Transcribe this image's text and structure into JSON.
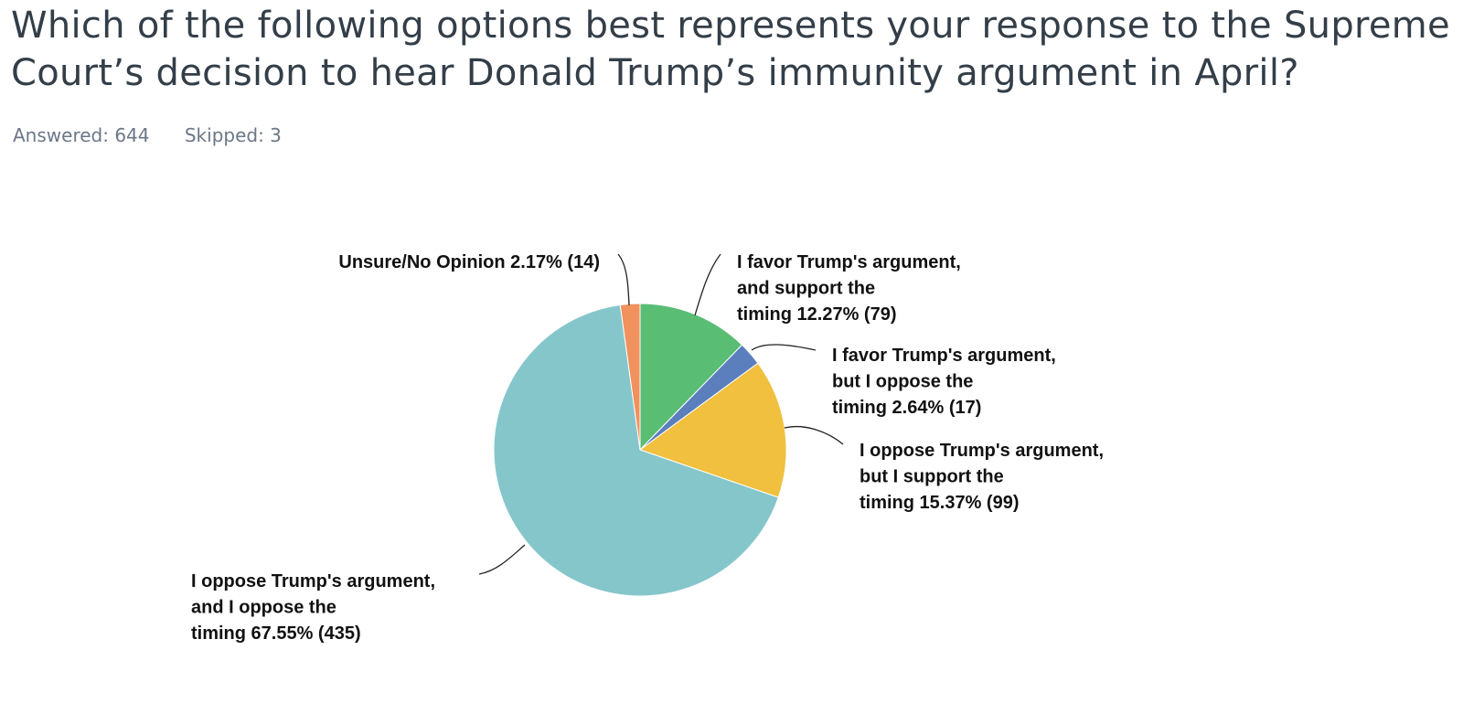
{
  "question": {
    "title": "Which of the following options best represents your response to the Supreme\nCourt’s decision to hear Donald Trump’s immunity argument in April?",
    "answered": "Answered: 644",
    "skipped": "Skipped: 3"
  },
  "chart_data": {
    "type": "pie",
    "title": "",
    "slices": [
      {
        "label": "I favor Trump's argument, and support the timing",
        "display": [
          "I favor Trump's argument,",
          "and support the",
          "timing 12.27% (79)"
        ],
        "percent": 12.27,
        "count": 79,
        "color": "#59bd74"
      },
      {
        "label": "I favor Trump's argument, but I oppose the timing",
        "display": [
          "I favor Trump's argument,",
          "but I oppose the",
          "timing 2.64% (17)"
        ],
        "percent": 2.64,
        "count": 17,
        "color": "#5b7fbd"
      },
      {
        "label": "I oppose Trump's argument, but I support the timing",
        "display": [
          "I oppose Trump's argument,",
          "but I support the",
          "timing 15.37% (99)"
        ],
        "percent": 15.37,
        "count": 99,
        "color": "#f0c03e"
      },
      {
        "label": "I oppose Trump's argument, and I oppose the timing",
        "display": [
          "I oppose Trump's argument,",
          "and I oppose the",
          "timing 67.55% (435)"
        ],
        "percent": 67.55,
        "count": 435,
        "color": "#85c6cb"
      },
      {
        "label": "Unsure/No Opinion",
        "display": [
          "Unsure/No Opinion 2.17% (14)"
        ],
        "percent": 2.17,
        "count": 14,
        "color": "#f0915e"
      }
    ]
  }
}
